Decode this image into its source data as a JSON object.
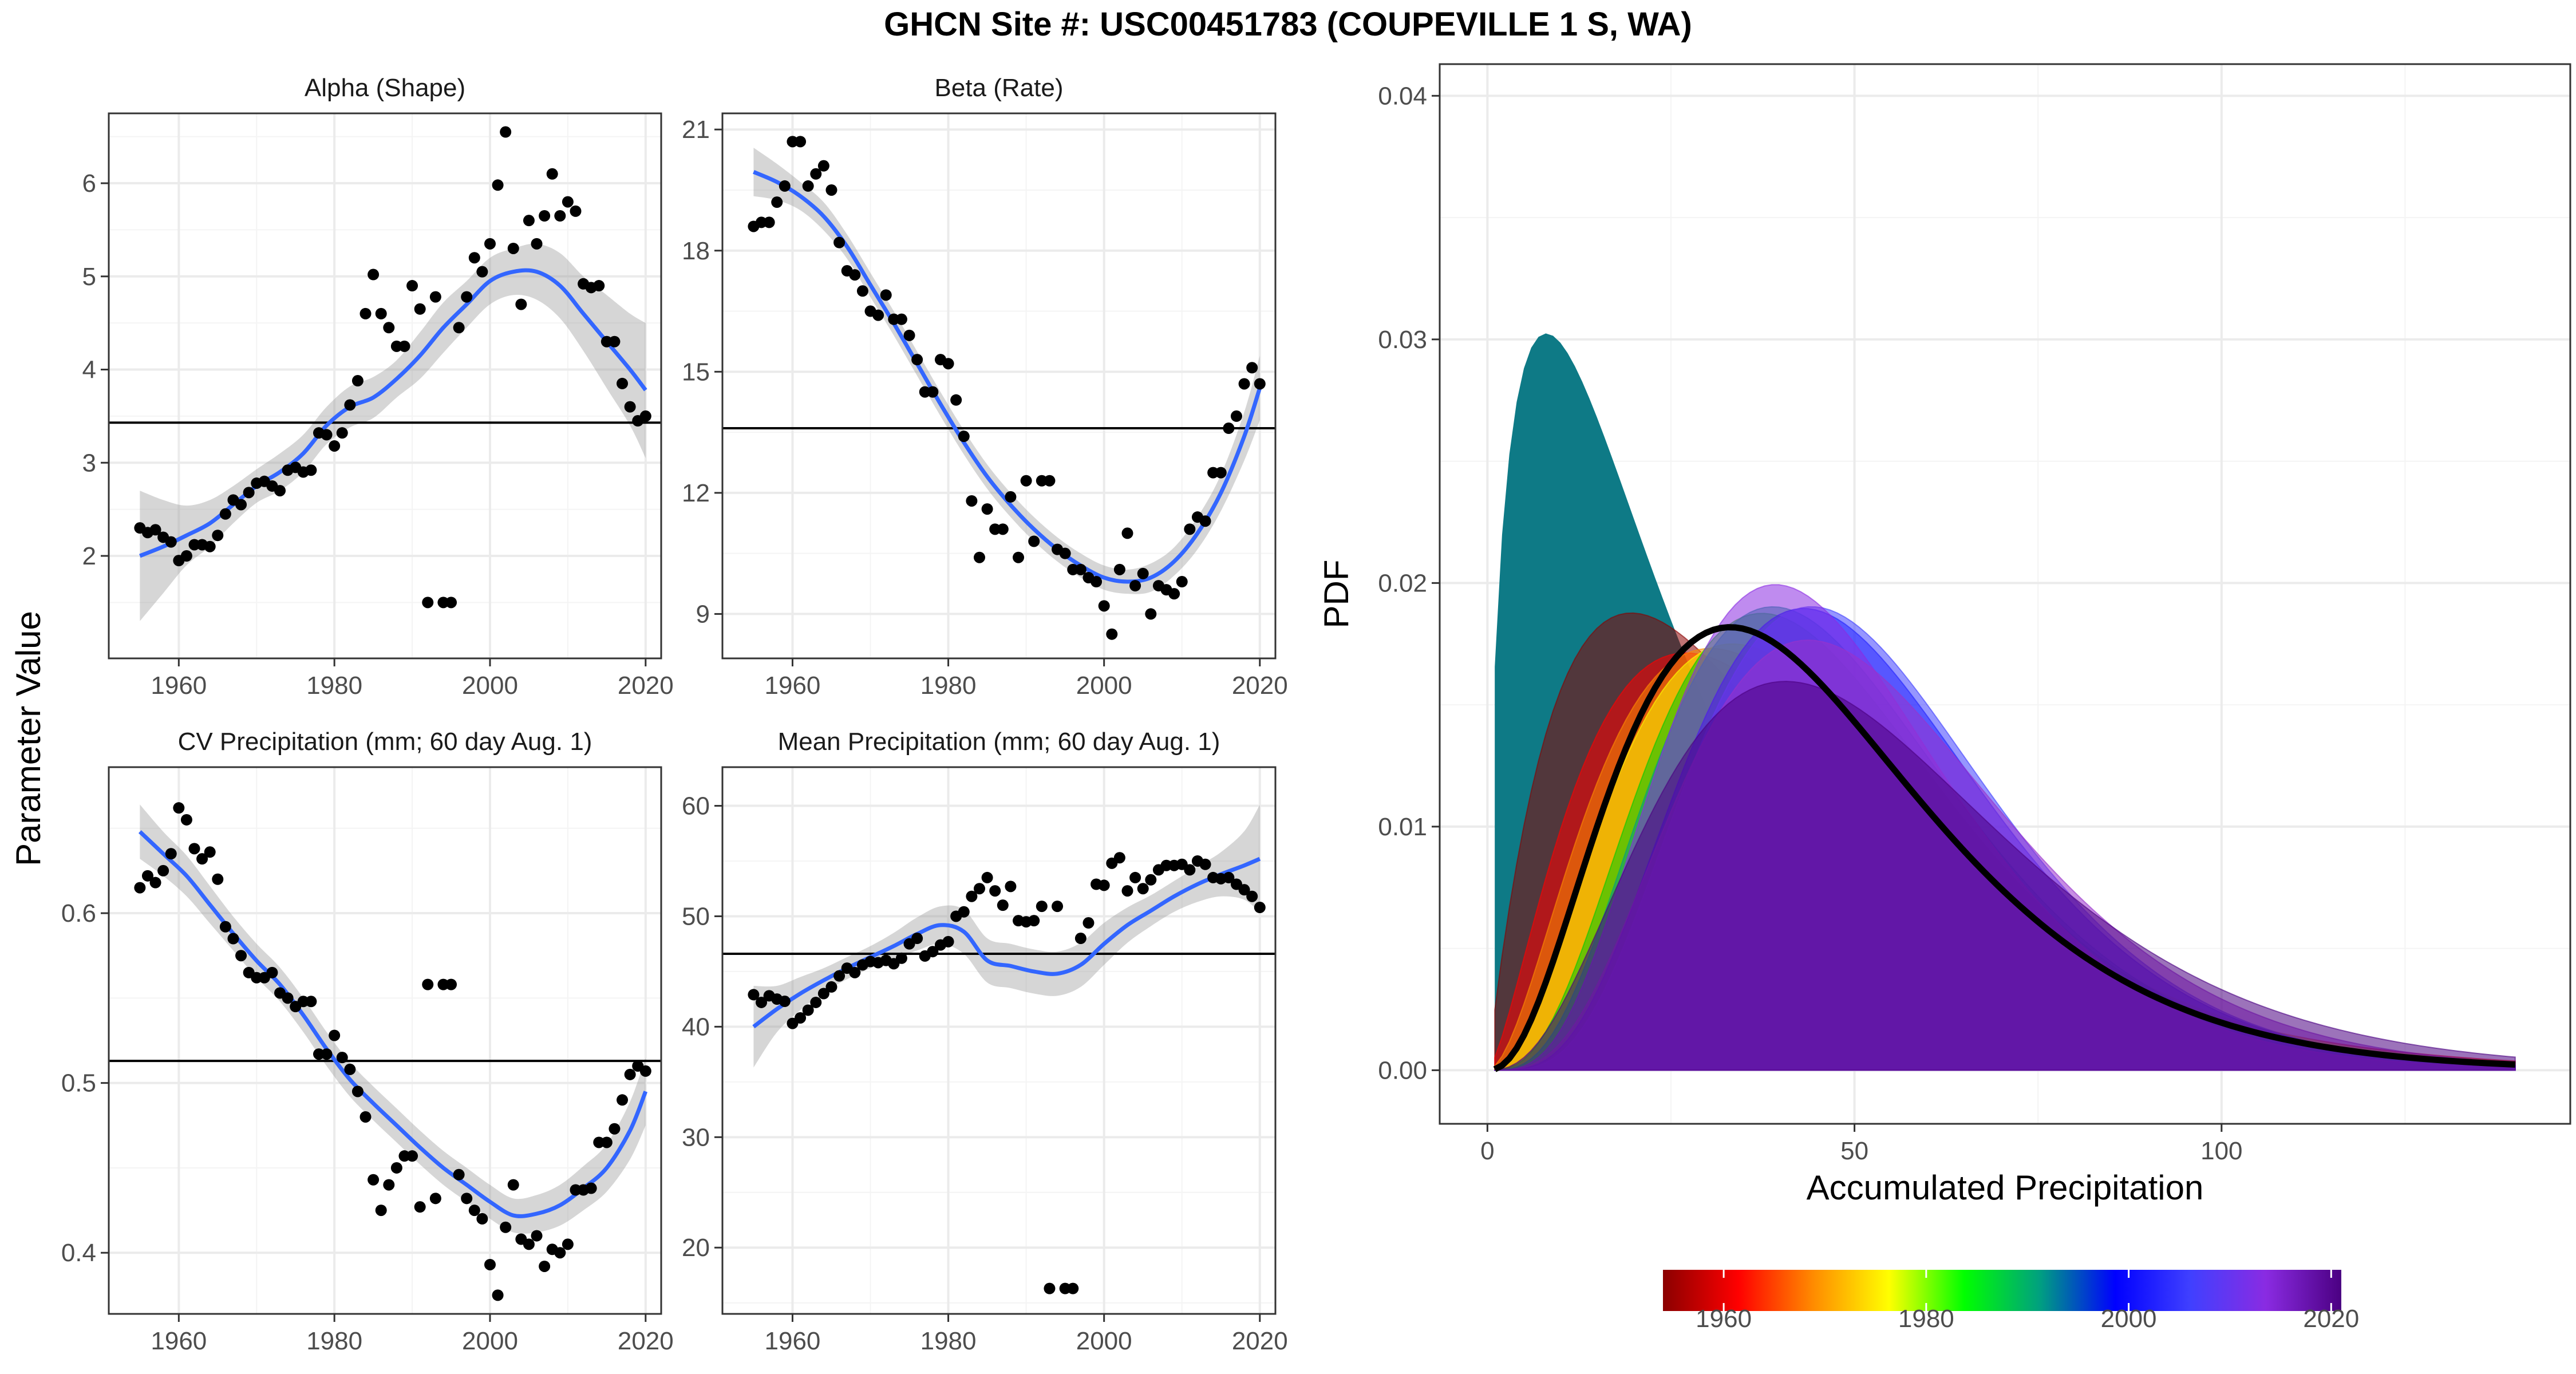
{
  "title": "GHCN Site #: USC00451783 (COUPEVILLE 1 S, WA)",
  "shared_ylabel": "Parameter Value",
  "colorbar": {
    "colors": [
      "#8b0000",
      "#ff0000",
      "#ff8c00",
      "#ffff00",
      "#00ff00",
      "#00a080",
      "#0000ff",
      "#4040ff",
      "#8a2be2",
      "#4b0082"
    ],
    "range": [
      1954,
      2021
    ],
    "ticks": [
      "1960",
      "1980",
      "2000",
      "2020"
    ]
  },
  "chart_data": [
    {
      "id": "alpha",
      "type": "scatter",
      "title": "Alpha (Shape)",
      "xlim": [
        1951,
        2022
      ],
      "ylim": [
        0.9,
        6.75
      ],
      "xticks": [
        "1960",
        "1980",
        "2000",
        "2020"
      ],
      "yticks": [
        "2",
        "3",
        "4",
        "5",
        "6"
      ],
      "hline": 3.43,
      "x": [
        1955,
        1956,
        1957,
        1958,
        1959,
        1960,
        1961,
        1962,
        1963,
        1964,
        1965,
        1966,
        1967,
        1968,
        1969,
        1970,
        1971,
        1972,
        1973,
        1974,
        1975,
        1976,
        1977,
        1978,
        1979,
        1980,
        1981,
        1982,
        1983,
        1984,
        1985,
        1986,
        1987,
        1988,
        1989,
        1990,
        1991,
        1992,
        1993,
        1994,
        1995,
        1996,
        1997,
        1998,
        1999,
        2000,
        2001,
        2002,
        2003,
        2004,
        2005,
        2006,
        2007,
        2008,
        2009,
        2010,
        2011,
        2012,
        2013,
        2014,
        2015,
        2016,
        2017,
        2018,
        2019,
        2020
      ],
      "y": [
        2.3,
        2.25,
        2.28,
        2.2,
        2.15,
        1.95,
        2.0,
        2.12,
        2.12,
        2.1,
        2.22,
        2.45,
        2.6,
        2.55,
        2.68,
        2.78,
        2.8,
        2.75,
        2.7,
        2.92,
        2.95,
        2.9,
        2.92,
        3.32,
        3.3,
        3.18,
        3.32,
        3.62,
        3.88,
        4.6,
        5.02,
        4.6,
        4.45,
        4.25,
        4.25,
        4.9,
        4.65,
        1.5,
        4.78,
        1.5,
        1.5,
        4.45,
        4.78,
        5.2,
        5.05,
        5.35,
        5.98,
        6.55,
        5.3,
        4.7,
        5.6,
        5.35,
        5.65,
        6.1,
        5.65,
        5.8,
        5.7,
        4.92,
        4.88,
        4.9,
        4.3,
        4.3,
        3.85,
        3.6,
        3.45,
        3.5
      ],
      "smooth": {
        "x": [
          1955,
          1958,
          1961,
          1964,
          1967,
          1970,
          1973,
          1976,
          1979,
          1982,
          1985,
          1988,
          1991,
          1994,
          1997,
          2000,
          2003,
          2006,
          2009,
          2012,
          2015,
          2018,
          2020
        ],
        "y": [
          2.0,
          2.1,
          2.22,
          2.35,
          2.55,
          2.75,
          2.9,
          3.1,
          3.4,
          3.6,
          3.7,
          3.9,
          4.15,
          4.45,
          4.7,
          4.95,
          5.05,
          5.05,
          4.9,
          4.6,
          4.3,
          4.0,
          3.78
        ],
        "lower": [
          1.3,
          1.6,
          1.9,
          2.1,
          2.35,
          2.57,
          2.7,
          2.9,
          3.2,
          3.38,
          3.48,
          3.7,
          3.9,
          4.18,
          4.45,
          4.7,
          4.8,
          4.75,
          4.55,
          4.2,
          3.8,
          3.4,
          3.05
        ],
        "upper": [
          2.7,
          2.6,
          2.54,
          2.6,
          2.75,
          2.93,
          3.1,
          3.3,
          3.6,
          3.82,
          3.92,
          4.1,
          4.4,
          4.72,
          4.95,
          5.2,
          5.3,
          5.35,
          5.25,
          5.0,
          4.8,
          4.6,
          4.5
        ]
      }
    },
    {
      "id": "beta",
      "type": "scatter",
      "title": "Beta (Rate)",
      "xlim": [
        1951,
        2022
      ],
      "ylim": [
        7.9,
        21.4
      ],
      "xticks": [
        "1960",
        "1980",
        "2000",
        "2020"
      ],
      "yticks": [
        "9",
        "12",
        "15",
        "18",
        "21"
      ],
      "hline": 13.6,
      "x": [
        1955,
        1956,
        1957,
        1958,
        1959,
        1960,
        1961,
        1962,
        1963,
        1964,
        1965,
        1966,
        1967,
        1968,
        1969,
        1970,
        1971,
        1972,
        1973,
        1974,
        1975,
        1976,
        1977,
        1978,
        1979,
        1980,
        1981,
        1982,
        1983,
        1984,
        1985,
        1986,
        1987,
        1988,
        1989,
        1990,
        1991,
        1992,
        1993,
        1994,
        1995,
        1996,
        1997,
        1998,
        1999,
        2000,
        2001,
        2002,
        2003,
        2004,
        2005,
        2006,
        2007,
        2008,
        2009,
        2010,
        2011,
        2012,
        2013,
        2014,
        2015,
        2016,
        2017,
        2018,
        2019,
        2020
      ],
      "y": [
        18.6,
        18.7,
        18.7,
        19.2,
        19.6,
        20.7,
        20.7,
        19.6,
        19.9,
        20.1,
        19.5,
        18.2,
        17.5,
        17.4,
        17.0,
        16.5,
        16.4,
        16.9,
        16.3,
        16.3,
        15.9,
        15.3,
        14.5,
        14.5,
        15.3,
        15.2,
        14.3,
        13.4,
        11.8,
        10.4,
        11.6,
        11.1,
        11.1,
        11.9,
        10.4,
        12.3,
        10.8,
        12.3,
        12.3,
        10.6,
        10.5,
        10.1,
        10.1,
        9.9,
        9.8,
        9.2,
        8.5,
        10.1,
        11.0,
        9.7,
        10.0,
        9.0,
        9.7,
        9.6,
        9.5,
        9.8,
        11.1,
        11.4,
        11.3,
        12.5,
        12.5,
        13.6,
        13.9,
        14.7,
        15.1,
        14.7
      ],
      "smooth": {
        "x": [
          1955,
          1958,
          1961,
          1964,
          1967,
          1970,
          1973,
          1976,
          1979,
          1982,
          1985,
          1988,
          1991,
          1994,
          1997,
          2000,
          2003,
          2006,
          2009,
          2012,
          2015,
          2018,
          2020
        ],
        "y": [
          19.95,
          19.7,
          19.35,
          18.85,
          18.1,
          17.15,
          16.2,
          15.2,
          14.2,
          13.25,
          12.4,
          11.7,
          11.1,
          10.6,
          10.2,
          9.9,
          9.8,
          9.9,
          10.3,
          11.0,
          12.0,
          13.4,
          14.6
        ],
        "lower": [
          19.35,
          19.25,
          19.0,
          18.5,
          17.8,
          16.85,
          15.9,
          14.9,
          13.9,
          12.95,
          12.1,
          11.4,
          10.8,
          10.3,
          9.9,
          9.6,
          9.5,
          9.55,
          9.95,
          10.6,
          11.55,
          12.8,
          13.8
        ],
        "upper": [
          20.55,
          20.15,
          19.7,
          19.2,
          18.4,
          17.45,
          16.5,
          15.5,
          14.5,
          13.55,
          12.7,
          12.0,
          11.4,
          10.9,
          10.5,
          10.2,
          10.1,
          10.25,
          10.65,
          11.4,
          12.45,
          14.0,
          15.4
        ]
      }
    },
    {
      "id": "cv",
      "type": "scatter",
      "title": "CV Precipitation (mm; 60 day Aug. 1)",
      "xlim": [
        1951,
        2022
      ],
      "ylim": [
        0.364,
        0.686
      ],
      "xticks": [
        "1960",
        "1980",
        "2000",
        "2020"
      ],
      "yticks": [
        "0.4",
        "0.5",
        "0.6"
      ],
      "hline": 0.513,
      "x": [
        1955,
        1956,
        1957,
        1958,
        1959,
        1960,
        1961,
        1962,
        1963,
        1964,
        1965,
        1966,
        1967,
        1968,
        1969,
        1970,
        1971,
        1972,
        1973,
        1974,
        1975,
        1976,
        1977,
        1978,
        1979,
        1980,
        1981,
        1982,
        1983,
        1984,
        1985,
        1986,
        1987,
        1988,
        1989,
        1990,
        1991,
        1992,
        1993,
        1994,
        1995,
        1996,
        1997,
        1998,
        1999,
        2000,
        2001,
        2002,
        2003,
        2004,
        2005,
        2006,
        2007,
        2008,
        2009,
        2010,
        2011,
        2012,
        2013,
        2014,
        2015,
        2016,
        2017,
        2018,
        2019,
        2020
      ],
      "y": [
        0.615,
        0.622,
        0.618,
        0.625,
        0.635,
        0.662,
        0.655,
        0.638,
        0.632,
        0.636,
        0.62,
        0.592,
        0.585,
        0.575,
        0.565,
        0.562,
        0.562,
        0.565,
        0.553,
        0.55,
        0.545,
        0.548,
        0.548,
        0.517,
        0.517,
        0.528,
        0.515,
        0.508,
        0.495,
        0.48,
        0.443,
        0.425,
        0.44,
        0.45,
        0.457,
        0.457,
        0.427,
        0.558,
        0.432,
        0.558,
        0.558,
        0.446,
        0.432,
        0.425,
        0.42,
        0.393,
        0.375,
        0.415,
        0.44,
        0.408,
        0.405,
        0.41,
        0.392,
        0.402,
        0.4,
        0.405,
        0.437,
        0.437,
        0.438,
        0.465,
        0.465,
        0.473,
        0.49,
        0.505,
        0.51,
        0.507
      ],
      "smooth": {
        "x": [
          1955,
          1958,
          1961,
          1964,
          1967,
          1970,
          1973,
          1976,
          1979,
          1982,
          1985,
          1988,
          1991,
          1994,
          1997,
          2000,
          2003,
          2006,
          2009,
          2012,
          2015,
          2018,
          2020
        ],
        "y": [
          0.648,
          0.635,
          0.622,
          0.605,
          0.588,
          0.572,
          0.558,
          0.54,
          0.52,
          0.502,
          0.488,
          0.475,
          0.462,
          0.45,
          0.44,
          0.43,
          0.422,
          0.423,
          0.428,
          0.438,
          0.45,
          0.472,
          0.495
        ],
        "lower": [
          0.632,
          0.622,
          0.61,
          0.594,
          0.578,
          0.562,
          0.548,
          0.53,
          0.51,
          0.492,
          0.478,
          0.465,
          0.452,
          0.44,
          0.43,
          0.42,
          0.412,
          0.412,
          0.416,
          0.425,
          0.436,
          0.455,
          0.475
        ],
        "upper": [
          0.664,
          0.648,
          0.634,
          0.616,
          0.598,
          0.582,
          0.568,
          0.55,
          0.53,
          0.512,
          0.498,
          0.485,
          0.472,
          0.46,
          0.45,
          0.44,
          0.432,
          0.434,
          0.44,
          0.451,
          0.464,
          0.489,
          0.515
        ]
      }
    },
    {
      "id": "mean",
      "type": "scatter",
      "title": "Mean Precipitation (mm; 60 day Aug. 1)",
      "xlim": [
        1951,
        2022
      ],
      "ylim": [
        14.0,
        63.5
      ],
      "xticks": [
        "1960",
        "1980",
        "2000",
        "2020"
      ],
      "yticks": [
        "20",
        "30",
        "40",
        "50",
        "60"
      ],
      "hline": 46.6,
      "x": [
        1955,
        1956,
        1957,
        1958,
        1959,
        1960,
        1961,
        1962,
        1963,
        1964,
        1965,
        1966,
        1967,
        1968,
        1969,
        1970,
        1971,
        1972,
        1973,
        1974,
        1975,
        1976,
        1977,
        1978,
        1979,
        1980,
        1981,
        1982,
        1983,
        1984,
        1985,
        1986,
        1987,
        1988,
        1989,
        1990,
        1991,
        1992,
        1993,
        1994,
        1995,
        1996,
        1997,
        1998,
        1999,
        2000,
        2001,
        2002,
        2003,
        2004,
        2005,
        2006,
        2007,
        2008,
        2009,
        2010,
        2011,
        2012,
        2013,
        2014,
        2015,
        2016,
        2017,
        2018,
        2019,
        2020
      ],
      "y": [
        42.9,
        42.2,
        42.8,
        42.5,
        42.3,
        40.3,
        40.8,
        41.5,
        42.2,
        43.0,
        43.6,
        44.6,
        45.3,
        44.9,
        45.6,
        45.9,
        45.8,
        46.0,
        45.7,
        46.2,
        47.5,
        48.0,
        46.4,
        46.8,
        47.4,
        47.7,
        50.0,
        50.4,
        51.8,
        52.5,
        53.5,
        52.3,
        51.0,
        52.7,
        49.6,
        49.5,
        49.6,
        50.9,
        16.3,
        50.9,
        16.3,
        16.3,
        48.0,
        49.4,
        52.9,
        52.8,
        54.8,
        55.3,
        52.3,
        53.5,
        52.5,
        53.3,
        54.2,
        54.6,
        54.6,
        54.7,
        54.2,
        55.0,
        54.7,
        53.5,
        53.4,
        53.5,
        52.9,
        52.4,
        51.8,
        50.8
      ],
      "smooth": {
        "x": [
          1955,
          1958,
          1961,
          1964,
          1967,
          1970,
          1973,
          1976,
          1979,
          1982,
          1985,
          1988,
          1991,
          1994,
          1997,
          2000,
          2003,
          2006,
          2009,
          2012,
          2015,
          2018,
          2020
        ],
        "y": [
          40.0,
          41.6,
          43.0,
          44.2,
          45.3,
          46.3,
          47.3,
          48.4,
          49.2,
          48.6,
          46.0,
          45.5,
          45.0,
          44.8,
          45.6,
          47.5,
          49.2,
          50.5,
          51.8,
          52.9,
          53.8,
          54.6,
          55.2
        ],
        "lower": [
          36.3,
          39.5,
          41.5,
          43.1,
          44.3,
          45.3,
          46.1,
          46.9,
          47.5,
          46.6,
          44.0,
          43.5,
          43.0,
          42.8,
          43.6,
          45.6,
          47.6,
          49.1,
          50.4,
          51.3,
          51.8,
          51.5,
          50.3
        ],
        "upper": [
          43.7,
          43.7,
          44.5,
          45.3,
          46.3,
          47.3,
          48.5,
          49.9,
          50.9,
          50.6,
          48.0,
          47.5,
          47.0,
          46.8,
          47.6,
          49.4,
          50.8,
          51.9,
          53.2,
          54.5,
          55.8,
          57.7,
          60.1
        ]
      }
    },
    {
      "id": "pdf",
      "type": "area",
      "xlabel": "Accumulated Precipitation",
      "ylabel": "PDF",
      "xlim": [
        -6.5,
        147.5
      ],
      "ylim": [
        -0.0022,
        0.0413
      ],
      "xticks": [
        "0",
        "50",
        "100"
      ],
      "yticks": [
        "0.00",
        "0.01",
        "0.02",
        "0.03",
        "0.04"
      ],
      "xmin": 1,
      "xmax": 140,
      "mean_curve": {
        "alpha": 3.43,
        "beta": 13.6,
        "color": "#000000"
      },
      "year_curves": [
        {
          "alpha": 2.0,
          "beta": 19.6,
          "color": "#8b0000"
        },
        {
          "alpha": 2.5,
          "beta": 18.0,
          "color": "#ff0000"
        },
        {
          "alpha": 2.9,
          "beta": 16.0,
          "color": "#ff8c00"
        },
        {
          "alpha": 3.3,
          "beta": 14.5,
          "color": "#ffff00"
        },
        {
          "alpha": 4.25,
          "beta": 11.5,
          "color": "#00cc00"
        },
        {
          "alpha": 4.6,
          "beta": 10.8,
          "color": "#00a080"
        },
        {
          "alpha": 5.35,
          "beta": 9.9,
          "color": "#0000ff"
        },
        {
          "alpha": 5.6,
          "beta": 9.6,
          "color": "#4040ff"
        },
        {
          "alpha": 5.0,
          "beta": 9.8,
          "color": "#8a2be2"
        },
        {
          "alpha": 4.9,
          "beta": 11.2,
          "color": "#9932cc"
        },
        {
          "alpha": 3.8,
          "beta": 14.5,
          "color": "#4b0082"
        }
      ],
      "outlier_curve": {
        "alpha": 1.5,
        "beta": 16.0,
        "color": "#0e7a86"
      }
    }
  ]
}
